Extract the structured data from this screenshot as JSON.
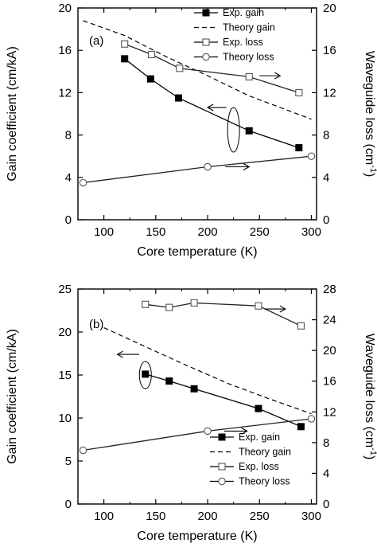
{
  "chart_data": [
    {
      "type": "line",
      "panel_label": "(a)",
      "xlabel": "Core temperature (K)",
      "ylabel_left": "Gain coefficient (cm/kA)",
      "ylabel_right": "Waveguide loss (cm",
      "ylabel_right_sup": "-1",
      "ylabel_right_close": ")",
      "xlim": [
        75,
        305
      ],
      "xticks": [
        100,
        150,
        200,
        250,
        300
      ],
      "ylim_left": [
        0,
        20
      ],
      "yticks_left": [
        0,
        4,
        8,
        12,
        16,
        20
      ],
      "ylim_right": [
        0,
        20
      ],
      "yticks_right": [
        0,
        4,
        8,
        12,
        16,
        20
      ],
      "legend": {
        "placement": "top-right"
      },
      "series": [
        {
          "name": "Exp. gain",
          "axis": "left",
          "style": "filled-square",
          "x": [
            120,
            145,
            172,
            240,
            288
          ],
          "y": [
            15.2,
            13.3,
            11.5,
            8.4,
            6.8
          ]
        },
        {
          "name": "Theory gain",
          "axis": "left",
          "style": "dashed",
          "x": [
            80,
            120,
            160,
            200,
            240,
            270,
            300
          ],
          "y": [
            18.8,
            17.4,
            15.4,
            13.6,
            11.7,
            10.6,
            9.5
          ]
        },
        {
          "name": "Exp. loss",
          "axis": "right",
          "style": "open-square",
          "x": [
            120,
            146,
            173,
            240,
            288
          ],
          "y": [
            16.6,
            15.6,
            14.3,
            13.5,
            12.0
          ]
        },
        {
          "name": "Theory loss",
          "axis": "right",
          "style": "open-circle",
          "x": [
            80,
            200,
            300
          ],
          "y": [
            3.5,
            5.0,
            6.0
          ]
        }
      ],
      "annotations": [
        {
          "type": "ellipse",
          "x": 225,
          "y": 8.5,
          "axis": "left"
        },
        {
          "type": "arrow",
          "direction": "left",
          "from_x": 218,
          "to_x": 200,
          "y": 10.6,
          "axis": "left"
        },
        {
          "type": "arrow",
          "direction": "right",
          "from_x": 250,
          "to_x": 270,
          "y": 13.6,
          "axis": "right"
        },
        {
          "type": "arrow",
          "direction": "right",
          "from_x": 217,
          "to_x": 240,
          "y": 5.0,
          "axis": "right"
        }
      ]
    },
    {
      "type": "line",
      "panel_label": "(b)",
      "xlabel": "Core temperature (K)",
      "ylabel_left": "Gain coefficient (cm/kA)",
      "ylabel_right": "Waveguide loss (cm",
      "ylabel_right_sup": "-1",
      "ylabel_right_close": ")",
      "xlim": [
        75,
        305
      ],
      "xticks": [
        100,
        150,
        200,
        250,
        300
      ],
      "ylim_left": [
        0,
        25
      ],
      "yticks_left": [
        0,
        5,
        10,
        15,
        20,
        25
      ],
      "ylim_right": [
        0,
        28
      ],
      "yticks_right": [
        0,
        4,
        8,
        12,
        16,
        20,
        24,
        28
      ],
      "legend": {
        "placement": "bottom-right"
      },
      "series": [
        {
          "name": "Exp. gain",
          "axis": "left",
          "style": "filled-square",
          "x": [
            140,
            163,
            187,
            249,
            290
          ],
          "y": [
            15.1,
            14.3,
            13.4,
            11.1,
            9.0
          ]
        },
        {
          "name": "Theory gain",
          "axis": "left",
          "style": "dashed",
          "x": [
            100,
            140,
            180,
            220,
            260,
            300
          ],
          "y": [
            20.5,
            18.3,
            16.1,
            14.0,
            12.2,
            10.5
          ]
        },
        {
          "name": "Exp. loss",
          "axis": "right",
          "style": "open-square",
          "x": [
            140,
            163,
            187,
            249,
            290
          ],
          "y": [
            26.0,
            25.6,
            26.2,
            25.8,
            23.2
          ]
        },
        {
          "name": "Theory loss",
          "axis": "right",
          "style": "open-circle",
          "x": [
            80,
            200,
            300
          ],
          "y": [
            7.0,
            9.5,
            11.1
          ]
        }
      ],
      "annotations": [
        {
          "type": "ellipse",
          "x": 140,
          "y": 15.0,
          "axis": "left"
        },
        {
          "type": "arrow",
          "direction": "left",
          "from_x": 134,
          "to_x": 113,
          "y": 17.4,
          "axis": "left"
        },
        {
          "type": "arrow",
          "direction": "right",
          "from_x": 255,
          "to_x": 275,
          "y": 25.4,
          "axis": "right"
        },
        {
          "type": "arrow",
          "direction": "right",
          "from_x": 216,
          "to_x": 238,
          "y": 9.5,
          "axis": "right"
        }
      ]
    }
  ]
}
